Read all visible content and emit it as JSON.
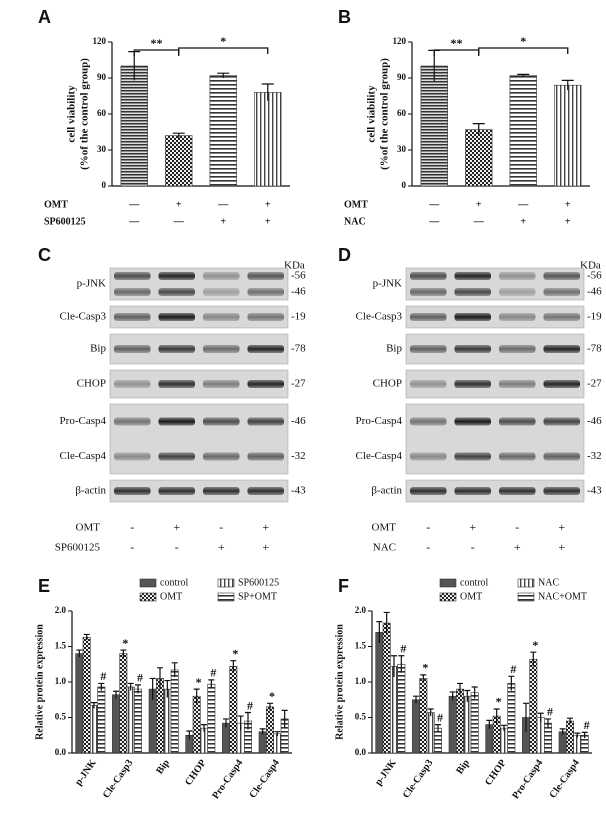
{
  "chart_data": [
    {
      "type": "bar",
      "panel": "A",
      "ylabel": [
        "cell viability",
        "(%of the control group)"
      ],
      "categories": [
        null,
        null,
        null,
        null
      ],
      "values": [
        100,
        42,
        92,
        78
      ],
      "errors": [
        12,
        2,
        2,
        7
      ],
      "fills": [
        "hdense",
        "checker",
        "hlines",
        "vlines"
      ],
      "ylim": [
        0,
        120
      ],
      "yticks": [
        0,
        30,
        60,
        90,
        120
      ],
      "significance": [
        "**",
        "*"
      ],
      "conditions": [
        {
          "name": "OMT",
          "signs": [
            "—",
            "+",
            "—",
            "+"
          ]
        },
        {
          "name": "SP600125",
          "signs": [
            "—",
            "—",
            "+",
            "+"
          ]
        }
      ]
    },
    {
      "type": "bar",
      "panel": "B",
      "ylabel": [
        "cell viability",
        "(%of the control group)"
      ],
      "categories": [
        null,
        null,
        null,
        null
      ],
      "values": [
        100,
        47,
        92,
        84
      ],
      "errors": [
        13,
        5,
        1,
        4
      ],
      "fills": [
        "hdense",
        "checker",
        "hlines",
        "vlines"
      ],
      "ylim": [
        0,
        120
      ],
      "yticks": [
        0,
        30,
        60,
        90,
        120
      ],
      "significance": [
        "**",
        "*"
      ],
      "conditions": [
        {
          "name": "OMT",
          "signs": [
            "—",
            "+",
            "—",
            "+"
          ]
        },
        {
          "name": "NAC",
          "signs": [
            "—",
            "—",
            "+",
            "+"
          ]
        }
      ]
    },
    {
      "type": "grouped-bar",
      "panel": "E",
      "ylabel": [
        "Relative protein expression"
      ],
      "categories": [
        "p-JNK",
        "Cle-Casp3",
        "Bip",
        "CHOP",
        "Pro-Casp4",
        "Cle-Casp4"
      ],
      "ylim": [
        0,
        2
      ],
      "yticks": [
        {
          "value": 0,
          "label": "0.0"
        },
        0.5,
        {
          "value": 1,
          "label": "1.0"
        },
        1.5,
        {
          "value": 2,
          "label": "2.0"
        }
      ],
      "series": [
        {
          "name": "control",
          "fill": "#555555",
          "values": [
            1.4,
            0.82,
            0.9,
            0.25,
            0.42,
            0.3
          ],
          "errors": [
            0.05,
            0.05,
            0.15,
            0.06,
            0.06,
            0.04
          ],
          "annotations": [
            null,
            null,
            null,
            null,
            null,
            null
          ]
        },
        {
          "name": "OMT",
          "fill": "checker",
          "values": [
            1.63,
            1.4,
            1.05,
            0.8,
            1.22,
            0.65
          ],
          "errors": [
            0.04,
            0.05,
            0.15,
            0.1,
            0.08,
            0.05
          ],
          "annotations": [
            null,
            "*",
            null,
            "*",
            "*",
            "*"
          ]
        },
        {
          "name": "SP600125",
          "fill": "vlines",
          "values": [
            0.67,
            0.93,
            0.9,
            0.35,
            0.42,
            0.27
          ],
          "errors": [
            0.04,
            0.05,
            0.12,
            0.05,
            0.1,
            0.03
          ],
          "annotations": [
            null,
            null,
            null,
            null,
            null,
            null
          ]
        },
        {
          "name": "SP+OMT",
          "fill": "hlines",
          "values": [
            0.93,
            0.9,
            1.17,
            0.97,
            0.45,
            0.48
          ],
          "errors": [
            0.05,
            0.06,
            0.1,
            0.06,
            0.12,
            0.12
          ],
          "annotations": [
            "#",
            "#",
            null,
            "#",
            "#",
            null
          ]
        }
      ]
    },
    {
      "type": "grouped-bar",
      "panel": "F",
      "ylabel": [
        "Relative protein expression"
      ],
      "categories": [
        "p-JNK",
        "Cle-Casp3",
        "Bip",
        "CHOP",
        "Pro-Casp4",
        "Cle-Casp4"
      ],
      "ylim": [
        0,
        2
      ],
      "yticks": [
        {
          "value": 0,
          "label": "0.0"
        },
        0.5,
        {
          "value": 1,
          "label": "1.0"
        },
        1.5,
        {
          "value": 2,
          "label": "2.0"
        }
      ],
      "series": [
        {
          "name": "control",
          "fill": "#555555",
          "values": [
            1.7,
            0.75,
            0.8,
            0.4,
            0.5,
            0.3
          ],
          "errors": [
            0.15,
            0.05,
            0.06,
            0.06,
            0.2,
            0.04
          ],
          "annotations": [
            null,
            null,
            null,
            null,
            null,
            null
          ]
        },
        {
          "name": "OMT",
          "fill": "checker",
          "values": [
            1.83,
            1.05,
            0.9,
            0.52,
            1.32,
            0.45
          ],
          "errors": [
            0.15,
            0.05,
            0.08,
            0.1,
            0.1,
            0.04
          ],
          "annotations": [
            null,
            "*",
            null,
            "*",
            "*",
            null
          ]
        },
        {
          "name": "NAC",
          "fill": "vlines",
          "values": [
            1.22,
            0.57,
            0.8,
            0.35,
            0.5,
            0.25
          ],
          "errors": [
            0.15,
            0.05,
            0.08,
            0.04,
            0.06,
            0.03
          ],
          "annotations": [
            null,
            null,
            null,
            null,
            null,
            null
          ]
        },
        {
          "name": "NAC+OMT",
          "fill": "hlines",
          "values": [
            1.25,
            0.35,
            0.85,
            0.98,
            0.42,
            0.25
          ],
          "errors": [
            0.12,
            0.05,
            0.08,
            0.1,
            0.06,
            0.04
          ],
          "annotations": [
            "#",
            "#",
            null,
            "#",
            "#",
            "#"
          ]
        }
      ]
    }
  ],
  "blots": [
    {
      "panel": "C",
      "unit": "KDa",
      "boxes": [
        {
          "labels": [
            "p-JNK"
          ],
          "markers": [
            "-56",
            "-46"
          ]
        },
        {
          "labels": [
            "Cle-Casp3"
          ],
          "markers": [
            "-19"
          ]
        },
        {
          "labels": [
            "Bip"
          ],
          "markers": [
            "-78"
          ]
        },
        {
          "labels": [
            "CHOP"
          ],
          "markers": [
            "-27"
          ]
        },
        {
          "labels": [
            "Pro-Casp4",
            "Cle-Casp4"
          ],
          "markers": [
            "-46",
            "-32"
          ]
        },
        {
          "labels": [
            "β-actin"
          ],
          "markers": [
            "-43"
          ]
        }
      ],
      "conditions": [
        {
          "name": "OMT",
          "signs": [
            "-",
            "+",
            "-",
            "+"
          ]
        },
        {
          "name": "SP600125",
          "signs": [
            "-",
            "-",
            "+",
            "+"
          ]
        }
      ]
    },
    {
      "panel": "D",
      "unit": "KDa",
      "boxes": [
        {
          "labels": [
            "p-JNK"
          ],
          "markers": [
            "-56",
            "-46"
          ]
        },
        {
          "labels": [
            "Cle-Casp3"
          ],
          "markers": [
            "-19"
          ]
        },
        {
          "labels": [
            "Bip"
          ],
          "markers": [
            "-78"
          ]
        },
        {
          "labels": [
            "CHOP"
          ],
          "markers": [
            "-27"
          ]
        },
        {
          "labels": [
            "Pro-Casp4",
            "Cle-Casp4"
          ],
          "markers": [
            "-46",
            "-32"
          ]
        },
        {
          "labels": [
            "β-actin"
          ],
          "markers": [
            "-43"
          ]
        }
      ],
      "conditions": [
        {
          "name": "OMT",
          "signs": [
            "-",
            "+",
            "-",
            "+"
          ]
        },
        {
          "name": "NAC",
          "signs": [
            "-",
            "-",
            "+",
            "+"
          ]
        }
      ]
    }
  ]
}
